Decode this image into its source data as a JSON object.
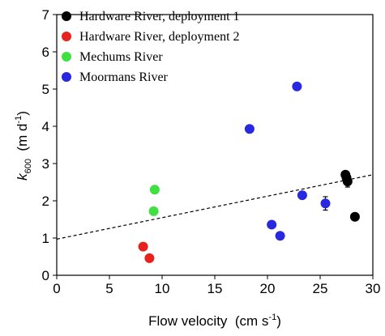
{
  "chart_data": {
    "type": "scatter",
    "xlim": [
      0,
      30
    ],
    "xticks": [
      0,
      5,
      10,
      15,
      20,
      25,
      30
    ],
    "ylim": [
      0,
      7
    ],
    "yticks": [
      0,
      1,
      2,
      3,
      4,
      5,
      6,
      7
    ],
    "xlabel": {
      "text": "Flow velocity  (cm s",
      "superscript": "-1",
      "close": ")"
    },
    "ylabel": {
      "symbol": "k",
      "subscript": "600",
      "unit": "  (m d",
      "superscript": "-1",
      "close": ")"
    },
    "legend": "top-left",
    "series": [
      {
        "name": "Hardware River, deployment 1",
        "color": "#000000",
        "x": [
          27.4,
          27.5,
          27.6,
          28.3
        ],
        "values": [
          2.7,
          2.62,
          2.52,
          1.57
        ],
        "errors": [
          null,
          null,
          0.15,
          0.08
        ]
      },
      {
        "name": "Hardware River, deployment 2",
        "color": "#e8211c",
        "x": [
          8.2,
          8.8
        ],
        "values": [
          0.77,
          0.46
        ],
        "errors": [
          null,
          null
        ]
      },
      {
        "name": "Mechums River",
        "color": "#3fe03f",
        "x": [
          9.3,
          9.2
        ],
        "values": [
          2.3,
          1.72
        ],
        "errors": [
          0.1,
          0.1
        ]
      },
      {
        "name": "Moormans River",
        "color": "#2828e0",
        "x": [
          18.3,
          22.8,
          23.3,
          20.4,
          21.2,
          25.5
        ],
        "values": [
          3.93,
          5.07,
          2.15,
          1.36,
          1.06,
          1.93
        ],
        "errors": [
          null,
          null,
          null,
          null,
          null,
          0.18
        ]
      }
    ],
    "trendline": {
      "x": [
        0,
        30
      ],
      "y": [
        0.97,
        2.7
      ],
      "color": "#000000",
      "dashed": true
    }
  }
}
